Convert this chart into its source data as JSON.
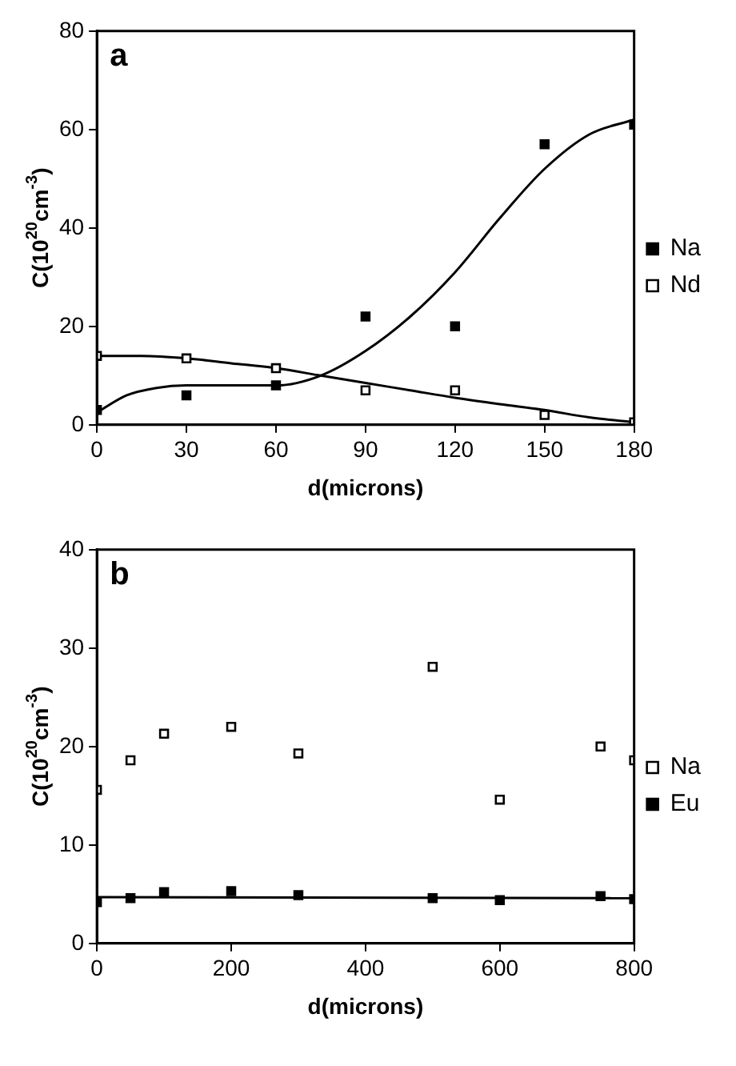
{
  "chart_data": [
    {
      "type": "scatter",
      "annotations": [
        "a"
      ],
      "xlabel": "d(microns)",
      "ylabel": "C(10$^{20}$cm$^{-3}$)",
      "xlim": [
        0,
        180
      ],
      "ylim": [
        0,
        80
      ],
      "xticks": [
        0,
        30,
        60,
        90,
        120,
        150,
        180
      ],
      "yticks": [
        0,
        20,
        40,
        60,
        80
      ],
      "grid": false,
      "legend": "right",
      "marker": "square",
      "series": [
        {
          "name": "Na",
          "color": "#000000",
          "x": [
            0,
            30,
            60,
            90,
            120,
            150,
            180
          ],
          "values": [
            3,
            6,
            8,
            22,
            20,
            57,
            61
          ]
        },
        {
          "name": "Nd",
          "color": "#ffffff",
          "x": [
            0,
            30,
            60,
            90,
            120,
            150,
            180
          ],
          "values": [
            14,
            13.5,
            11.5,
            7,
            7,
            2,
            0.5
          ]
        },
        {
          "type": "line",
          "color": "#000000",
          "marker": "none",
          "x": [
            0,
            10,
            20,
            30,
            45,
            60,
            75,
            90,
            105,
            120,
            135,
            150,
            165,
            180
          ],
          "values": [
            2.5,
            6,
            7.5,
            8,
            8,
            8,
            10,
            15,
            22,
            31,
            42,
            52,
            59,
            62
          ]
        },
        {
          "type": "line",
          "color": "#000000",
          "marker": "none",
          "x": [
            0,
            15,
            30,
            45,
            60,
            75,
            90,
            105,
            120,
            135,
            150,
            165,
            180
          ],
          "values": [
            14,
            14,
            13.5,
            12.5,
            11.5,
            10,
            8.5,
            7,
            5.5,
            4.2,
            3,
            1.5,
            0.5
          ]
        }
      ]
    },
    {
      "type": "scatter",
      "annotations": [
        "b"
      ],
      "xlabel": "d(microns)",
      "ylabel": "C(10$^{20}$cm$^{-3}$)",
      "xlim": [
        0,
        800
      ],
      "ylim": [
        0,
        40
      ],
      "xticks": [
        0,
        200,
        400,
        600,
        800
      ],
      "yticks": [
        0,
        10,
        20,
        30,
        40
      ],
      "grid": false,
      "legend": "right",
      "marker": "square",
      "series": [
        {
          "name": "Na",
          "color": "#ffffff",
          "x": [
            0,
            50,
            100,
            200,
            300,
            500,
            600,
            750,
            800
          ],
          "values": [
            15.6,
            18.6,
            21.3,
            22,
            19.3,
            28.1,
            14.6,
            20,
            18.6
          ]
        },
        {
          "name": "Eu",
          "color": "#000000",
          "x": [
            0,
            50,
            100,
            200,
            300,
            500,
            600,
            750,
            800
          ],
          "values": [
            4.2,
            4.6,
            5.2,
            5.3,
            4.9,
            4.6,
            4.4,
            4.8,
            4.5
          ]
        },
        {
          "type": "line",
          "color": "#000000",
          "marker": "none",
          "x": [
            0,
            800
          ],
          "values": [
            4.7,
            4.6
          ]
        }
      ]
    }
  ]
}
